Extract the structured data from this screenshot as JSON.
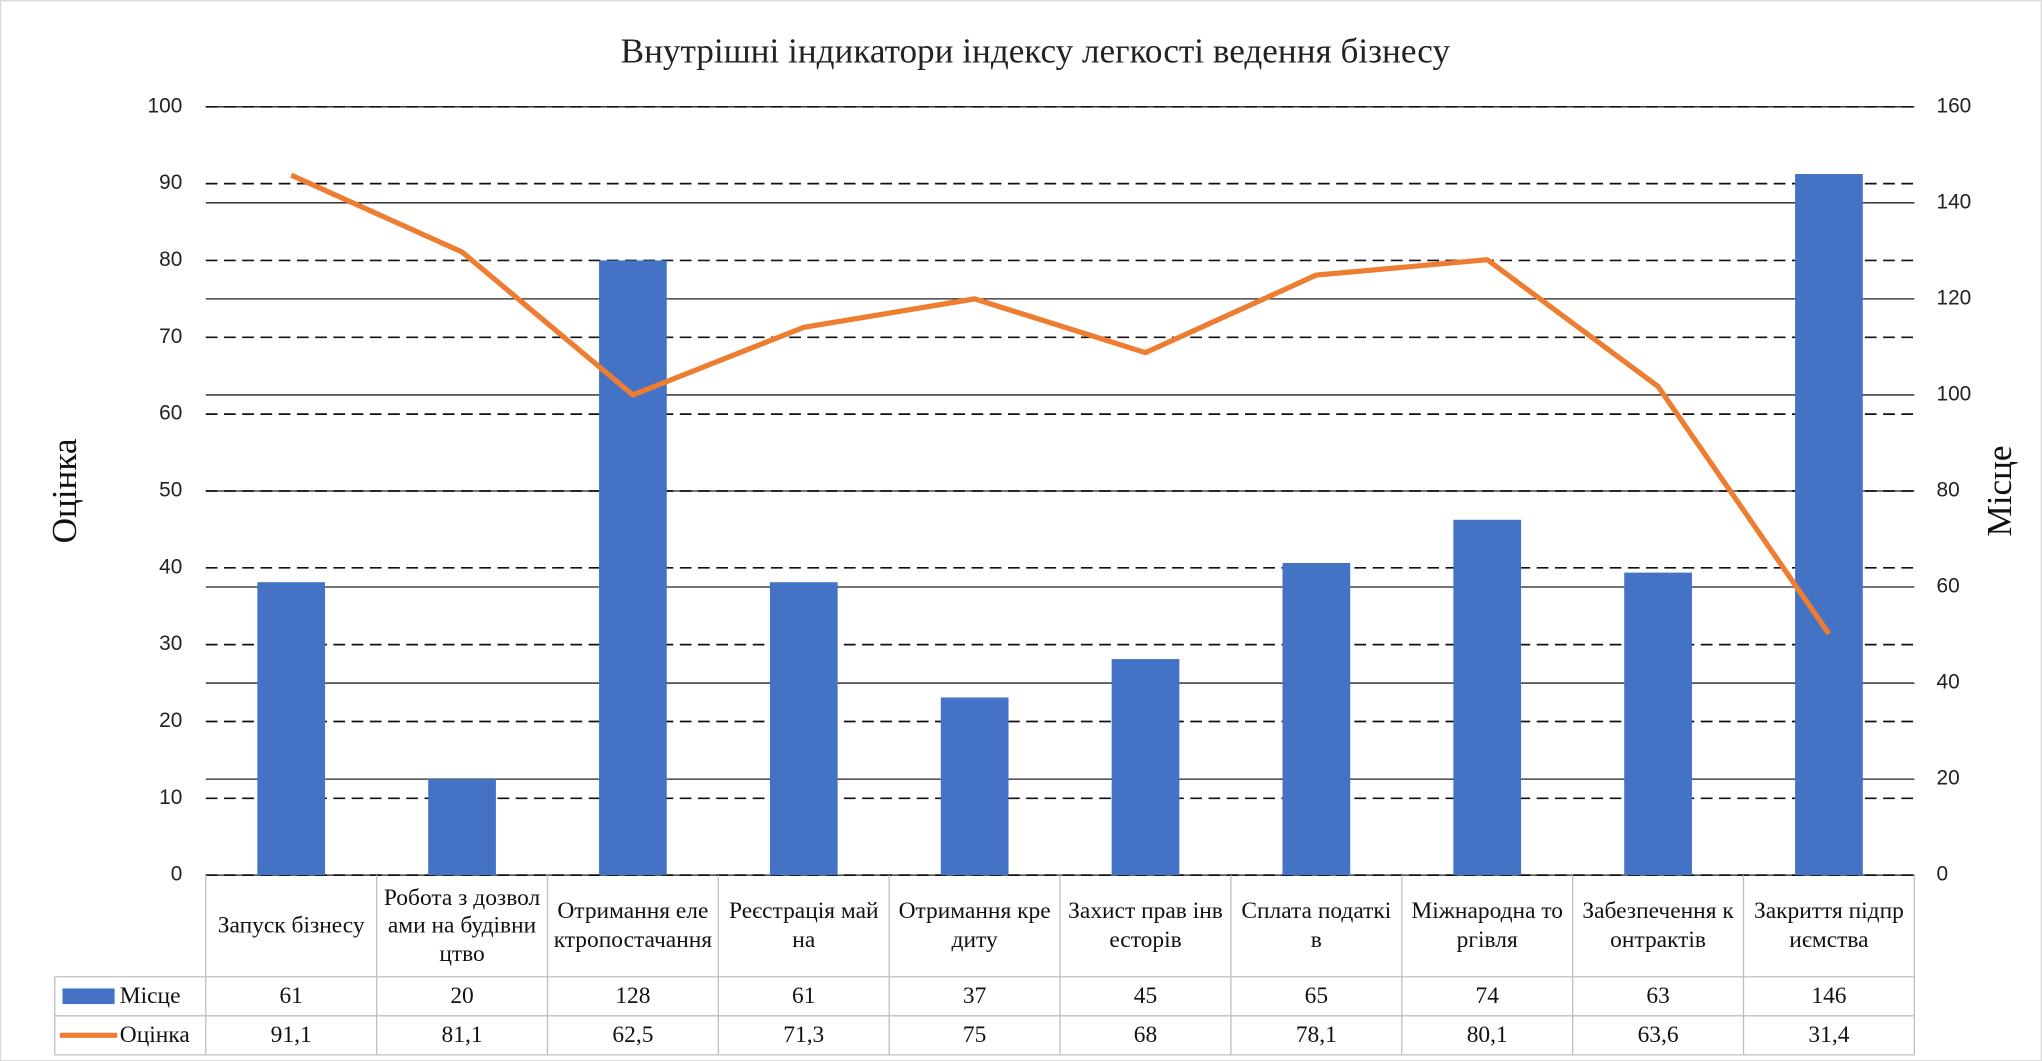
{
  "chart_data": {
    "type": "bar-line",
    "title": "Внутрішні індикатори індексу легкості ведення бізнесу",
    "ylabel": "Оцінка",
    "y2label": "Місце",
    "categories": [
      "Запуск бізнесу",
      "Робота з дозволами на будівництво",
      "Отримання електропостачання",
      "Реєстрація майна",
      "Отримання кредиту",
      "Захист прав інвесторів",
      "Сплата податків",
      "Міжнародна торгівля",
      "Забезпечення контрактів",
      "Закриття підприємства"
    ],
    "series": [
      {
        "name": "Місце",
        "type": "bar",
        "axis": "y2",
        "color": "#4472c4",
        "values": [
          61,
          20,
          128,
          61,
          37,
          45,
          65,
          74,
          63,
          146
        ]
      },
      {
        "name": "Оцінка",
        "type": "line",
        "axis": "y",
        "color": "#ed7d31",
        "values": [
          91.1,
          81.1,
          62.5,
          71.3,
          75,
          68,
          78.1,
          80.1,
          63.6,
          31.4
        ],
        "value_labels": [
          "91,1",
          "81,1",
          "62,5",
          "71,3",
          "75",
          "68",
          "78,1",
          "80,1",
          "63,6",
          "31,4"
        ]
      }
    ],
    "ylim": [
      0,
      100
    ],
    "yticks": [
      0,
      10,
      20,
      30,
      40,
      50,
      60,
      70,
      80,
      90,
      100
    ],
    "y2lim": [
      0,
      160
    ],
    "y2ticks": [
      0,
      20,
      40,
      60,
      80,
      100,
      120,
      140,
      160
    ],
    "grid": true,
    "data_table": true
  }
}
